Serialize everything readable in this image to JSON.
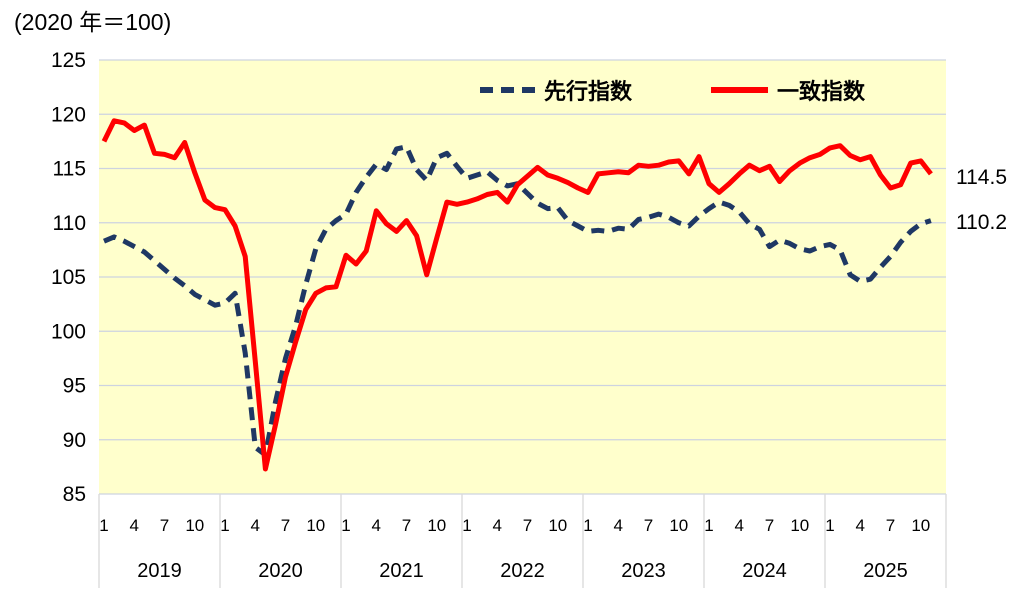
{
  "title": "(2020 年＝100)",
  "legend": [
    {
      "label": "先行指数",
      "style": "dashed",
      "color": "#1F3864"
    },
    {
      "label": "一致指数",
      "style": "solid",
      "color": "#FF0000"
    }
  ],
  "end_labels": {
    "coincident": "114.5",
    "leading": "110.2"
  },
  "colors": {
    "leading": "#1F3864",
    "coincident": "#FF0000",
    "plot_bg": "#FFFFCC",
    "gridline": "#CDD3E0",
    "separator": "#D9D9D9",
    "text": "#000000"
  },
  "chart_data": {
    "type": "line",
    "title": "(2020 年＝100)",
    "x_start": "2019-01",
    "x_end": "2025-11",
    "years": [
      "2019",
      "2020",
      "2021",
      "2022",
      "2023",
      "2024",
      "2025"
    ],
    "month_ticks": [
      "1",
      "4",
      "7",
      "10"
    ],
    "month_tick_offsets": [
      0,
      3,
      6,
      9
    ],
    "ylim": [
      85,
      125
    ],
    "y_ticks": [
      "125",
      "120",
      "115",
      "110",
      "105",
      "100",
      "95",
      "90",
      "85"
    ],
    "grid": "horizontal-only",
    "legend_position": "top-inside",
    "series": [
      {
        "name": "先行指数",
        "color": "#1F3864",
        "dash": true,
        "last_value_label": "110.2",
        "values": [
          108.3,
          108.7,
          108.3,
          107.8,
          107.3,
          106.5,
          105.7,
          104.9,
          104.2,
          103.4,
          102.9,
          102.4,
          102.6,
          103.5,
          98.0,
          89.3,
          88.6,
          93.5,
          97.5,
          100.5,
          104.3,
          107.6,
          109.4,
          110.2,
          110.8,
          112.8,
          114.2,
          115.4,
          114.9,
          116.8,
          117.0,
          114.9,
          113.9,
          116.0,
          116.4,
          115.2,
          114.1,
          114.4,
          114.7,
          113.9,
          113.4,
          113.6,
          112.7,
          111.8,
          111.3,
          111.4,
          110.2,
          109.7,
          109.2,
          109.3,
          109.2,
          109.5,
          109.4,
          110.3,
          110.5,
          110.8,
          110.5,
          110.0,
          109.7,
          110.6,
          111.3,
          111.9,
          111.6,
          111.0,
          109.9,
          109.4,
          107.8,
          108.4,
          108.1,
          107.6,
          107.4,
          107.8,
          108.0,
          107.5,
          105.2,
          104.6,
          104.8,
          105.9,
          106.9,
          108.2,
          109.2,
          109.9,
          110.2
        ]
      },
      {
        "name": "一致指数",
        "color": "#FF0000",
        "dash": false,
        "last_value_label": "114.5",
        "values": [
          117.5,
          119.4,
          119.2,
          118.5,
          119.0,
          116.4,
          116.3,
          116.0,
          117.4,
          114.6,
          112.1,
          111.4,
          111.2,
          109.7,
          106.9,
          97.2,
          87.3,
          91.4,
          95.8,
          99.0,
          102.0,
          103.5,
          104.0,
          104.1,
          107.0,
          106.2,
          107.4,
          111.1,
          109.9,
          109.2,
          110.2,
          108.8,
          105.2,
          108.6,
          111.9,
          111.7,
          111.9,
          112.2,
          112.6,
          112.8,
          111.9,
          113.5,
          114.3,
          115.1,
          114.4,
          114.1,
          113.7,
          113.2,
          112.8,
          114.5,
          114.6,
          114.7,
          114.6,
          115.3,
          115.2,
          115.3,
          115.6,
          115.7,
          114.5,
          116.1,
          113.6,
          112.8,
          113.6,
          114.5,
          115.3,
          114.8,
          115.2,
          113.8,
          114.8,
          115.5,
          116.0,
          116.3,
          116.9,
          117.1,
          116.2,
          115.8,
          116.1,
          114.4,
          113.2,
          113.5,
          115.5,
          115.7,
          114.5
        ]
      }
    ]
  }
}
